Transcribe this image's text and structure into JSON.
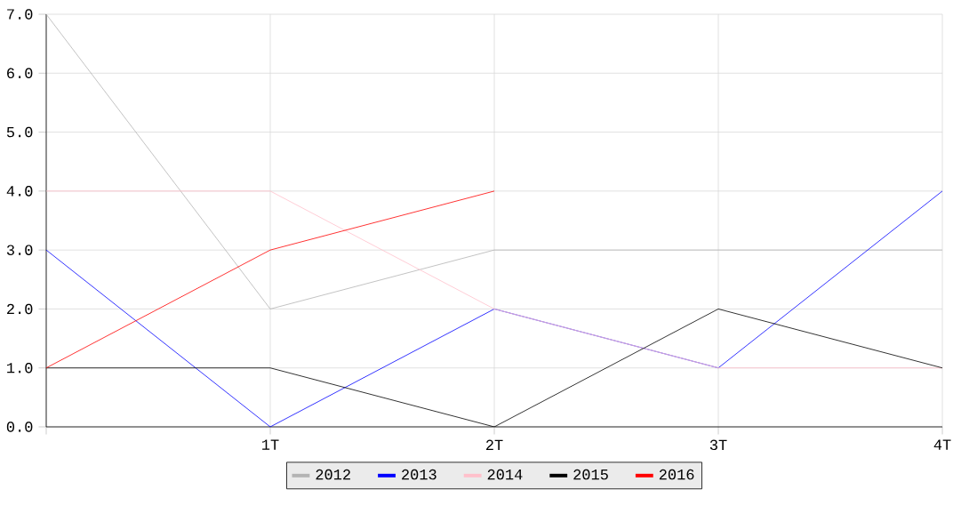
{
  "chart_data": {
    "type": "line",
    "categories": [
      null,
      "1T",
      "2T",
      "3T",
      "4T"
    ],
    "series": [
      {
        "name": "2012",
        "color": "#b4b4b4",
        "values": [
          7,
          2,
          3,
          3,
          3
        ]
      },
      {
        "name": "2013",
        "color": "#0000ff",
        "values": [
          3,
          0,
          2,
          1,
          4
        ]
      },
      {
        "name": "2014",
        "color": "#ffc0cb",
        "values": [
          4,
          4,
          2,
          1,
          1
        ]
      },
      {
        "name": "2015",
        "color": "#000000",
        "values": [
          1,
          1,
          0,
          2,
          1
        ]
      },
      {
        "name": "2016",
        "color": "#ff0000",
        "values": [
          1,
          3,
          4,
          null,
          null
        ]
      }
    ],
    "ylim": [
      0,
      7
    ],
    "yticks": [
      {
        "value": 0,
        "label": "0.0"
      },
      {
        "value": 1,
        "label": "1.0"
      },
      {
        "value": 2,
        "label": "2.0"
      },
      {
        "value": 3,
        "label": "3.0"
      },
      {
        "value": 4,
        "label": "4.0"
      },
      {
        "value": 5,
        "label": "5.0"
      },
      {
        "value": 6,
        "label": "6.0"
      },
      {
        "value": 7,
        "label": "7.0"
      }
    ],
    "grid": true,
    "legend": "bottom",
    "marker": "none",
    "line_style": "solid"
  }
}
